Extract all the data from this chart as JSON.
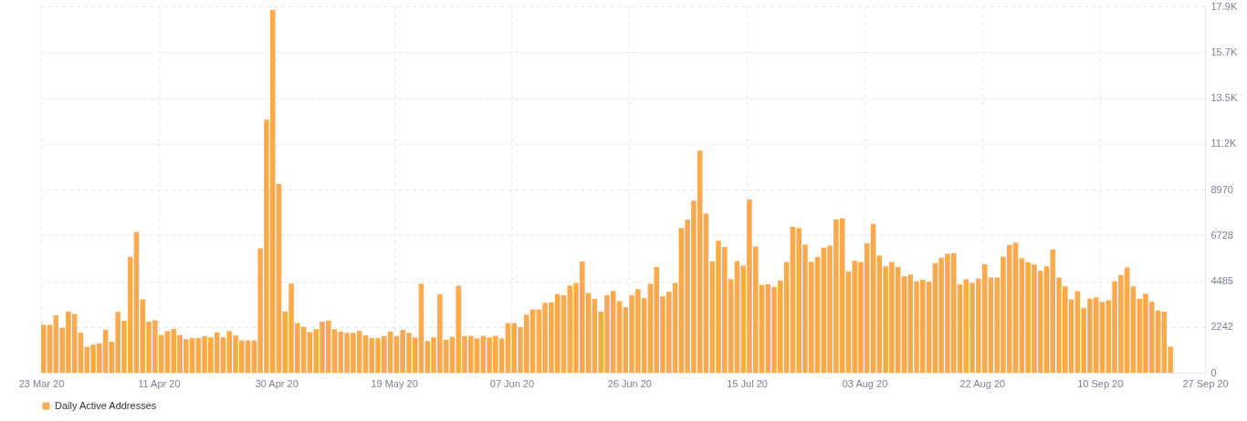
{
  "chart_data": {
    "type": "bar",
    "x": [
      "2020-03-23",
      "2020-03-24",
      "2020-03-25",
      "2020-03-26",
      "2020-03-27",
      "2020-03-28",
      "2020-03-29",
      "2020-03-30",
      "2020-03-31",
      "2020-04-01",
      "2020-04-02",
      "2020-04-03",
      "2020-04-04",
      "2020-04-05",
      "2020-04-06",
      "2020-04-07",
      "2020-04-08",
      "2020-04-09",
      "2020-04-10",
      "2020-04-11",
      "2020-04-12",
      "2020-04-13",
      "2020-04-14",
      "2020-04-15",
      "2020-04-16",
      "2020-04-17",
      "2020-04-18",
      "2020-04-19",
      "2020-04-20",
      "2020-04-21",
      "2020-04-22",
      "2020-04-23",
      "2020-04-24",
      "2020-04-25",
      "2020-04-26",
      "2020-04-27",
      "2020-04-28",
      "2020-04-29",
      "2020-04-30",
      "2020-05-01",
      "2020-05-02",
      "2020-05-03",
      "2020-05-04",
      "2020-05-05",
      "2020-05-06",
      "2020-05-07",
      "2020-05-08",
      "2020-05-09",
      "2020-05-10",
      "2020-05-11",
      "2020-05-12",
      "2020-05-13",
      "2020-05-14",
      "2020-05-15",
      "2020-05-16",
      "2020-05-17",
      "2020-05-18",
      "2020-05-19",
      "2020-05-20",
      "2020-05-21",
      "2020-05-22",
      "2020-05-23",
      "2020-05-24",
      "2020-05-25",
      "2020-05-26",
      "2020-05-27",
      "2020-05-28",
      "2020-05-29",
      "2020-05-30",
      "2020-05-31",
      "2020-06-01",
      "2020-06-02",
      "2020-06-03",
      "2020-06-04",
      "2020-06-05",
      "2020-06-06",
      "2020-06-07",
      "2020-06-08",
      "2020-06-09",
      "2020-06-10",
      "2020-06-11",
      "2020-06-12",
      "2020-06-13",
      "2020-06-14",
      "2020-06-15",
      "2020-06-16",
      "2020-06-17",
      "2020-06-18",
      "2020-06-19",
      "2020-06-20",
      "2020-06-21",
      "2020-06-22",
      "2020-06-23",
      "2020-06-24",
      "2020-06-25",
      "2020-06-26",
      "2020-06-27",
      "2020-06-28",
      "2020-06-29",
      "2020-06-30",
      "2020-07-01",
      "2020-07-02",
      "2020-07-03",
      "2020-07-04",
      "2020-07-05",
      "2020-07-06",
      "2020-07-07",
      "2020-07-08",
      "2020-07-09",
      "2020-07-10",
      "2020-07-11",
      "2020-07-12",
      "2020-07-13",
      "2020-07-14",
      "2020-07-15",
      "2020-07-16",
      "2020-07-17",
      "2020-07-18",
      "2020-07-19",
      "2020-07-20",
      "2020-07-21",
      "2020-07-22",
      "2020-07-23",
      "2020-07-24",
      "2020-07-25",
      "2020-07-26",
      "2020-07-27",
      "2020-07-28",
      "2020-07-29",
      "2020-07-30",
      "2020-07-31",
      "2020-08-01",
      "2020-08-02",
      "2020-08-03",
      "2020-08-04",
      "2020-08-05",
      "2020-08-06",
      "2020-08-07",
      "2020-08-08",
      "2020-08-09",
      "2020-08-10",
      "2020-08-11",
      "2020-08-12",
      "2020-08-13",
      "2020-08-14",
      "2020-08-15",
      "2020-08-16",
      "2020-08-17",
      "2020-08-18",
      "2020-08-19",
      "2020-08-20",
      "2020-08-21",
      "2020-08-22",
      "2020-08-23",
      "2020-08-24",
      "2020-08-25",
      "2020-08-26",
      "2020-08-27",
      "2020-08-28",
      "2020-08-29",
      "2020-08-30",
      "2020-08-31",
      "2020-09-01",
      "2020-09-02",
      "2020-09-03",
      "2020-09-04",
      "2020-09-05",
      "2020-09-06",
      "2020-09-07",
      "2020-09-08",
      "2020-09-09",
      "2020-09-10",
      "2020-09-11",
      "2020-09-12",
      "2020-09-13",
      "2020-09-14",
      "2020-09-15",
      "2020-09-16",
      "2020-09-17",
      "2020-09-18",
      "2020-09-19",
      "2020-09-20",
      "2020-09-21"
    ],
    "series": [
      {
        "name": "Daily Active Addresses",
        "color": "#ffa94d",
        "values": [
          2350,
          2350,
          2810,
          2200,
          2990,
          2870,
          1960,
          1270,
          1370,
          1430,
          2100,
          1520,
          2980,
          2540,
          5670,
          6890,
          3590,
          2500,
          2570,
          1850,
          2040,
          2140,
          1850,
          1640,
          1700,
          1700,
          1790,
          1730,
          1980,
          1730,
          2040,
          1820,
          1580,
          1580,
          1580,
          6090,
          12400,
          17770,
          9240,
          2990,
          4360,
          2430,
          2250,
          1990,
          2130,
          2500,
          2560,
          2130,
          2020,
          1950,
          1950,
          2050,
          1830,
          1700,
          1700,
          1790,
          2020,
          1790,
          2100,
          1950,
          1730,
          4360,
          1550,
          1730,
          3840,
          1620,
          1760,
          4260,
          1800,
          1800,
          1680,
          1800,
          1730,
          1800,
          1680,
          2430,
          2430,
          2230,
          2840,
          3100,
          3100,
          3420,
          3450,
          3850,
          3790,
          4260,
          4390,
          5450,
          3900,
          3620,
          2990,
          3790,
          4000,
          3510,
          3210,
          3790,
          4090,
          3650,
          4360,
          5180,
          3740,
          3960,
          4390,
          7080,
          7500,
          8420,
          10880,
          7800,
          5450,
          6460,
          6160,
          4580,
          5460,
          5250,
          8480,
          6180,
          4300,
          4330,
          4210,
          4510,
          5420,
          7140,
          7080,
          6280,
          5430,
          5670,
          6130,
          6220,
          7500,
          7560,
          4960,
          5480,
          5420,
          6340,
          7290,
          5740,
          5210,
          5420,
          5180,
          4730,
          4810,
          4480,
          4550,
          4460,
          5370,
          5630,
          5820,
          5850,
          4320,
          4580,
          4400,
          4610,
          5310,
          4660,
          4660,
          5680,
          6260,
          6370,
          5600,
          5420,
          5300,
          4990,
          5210,
          6040,
          4660,
          4230,
          3590,
          3990,
          3160,
          3630,
          3690,
          3470,
          3540,
          4480,
          4780,
          5150,
          4230,
          3620,
          3870,
          3480,
          3050,
          2990,
          1280
        ]
      }
    ],
    "xlim": [
      "2020-03-23",
      "2020-09-27"
    ],
    "xticks": [
      {
        "value": "2020-03-23",
        "label": "23 Mar 20"
      },
      {
        "value": "2020-04-11",
        "label": "11 Apr 20"
      },
      {
        "value": "2020-04-30",
        "label": "30 Apr 20"
      },
      {
        "value": "2020-05-19",
        "label": "19 May 20"
      },
      {
        "value": "2020-06-07",
        "label": "07 Jun 20"
      },
      {
        "value": "2020-06-26",
        "label": "26 Jun 20"
      },
      {
        "value": "2020-07-15",
        "label": "15 Jul 20"
      },
      {
        "value": "2020-08-03",
        "label": "03 Aug 20"
      },
      {
        "value": "2020-08-22",
        "label": "22 Aug 20"
      },
      {
        "value": "2020-09-10",
        "label": "10 Sep 20"
      },
      {
        "value": "2020-09-27",
        "label": "27 Sep 20"
      }
    ],
    "ylim": [
      0,
      17940
    ],
    "yticks": [
      0,
      2242,
      4485,
      6728,
      8970,
      {
        "value": 11212,
        "label": "11.2K"
      },
      {
        "value": 13455,
        "label": "13.5K"
      },
      {
        "value": 15697,
        "label": "15.7K"
      },
      {
        "value": 17940,
        "label": "17.9K"
      }
    ],
    "grid": true,
    "legend": "bottom"
  }
}
